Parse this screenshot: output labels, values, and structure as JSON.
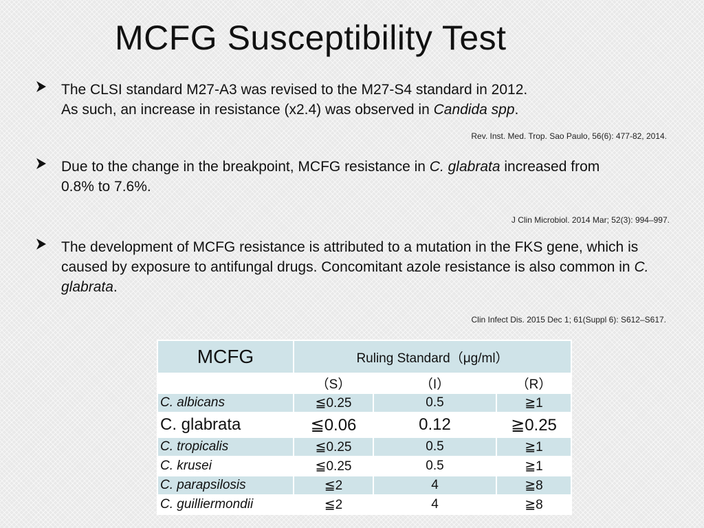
{
  "slide": {
    "title": "MCFG Susceptibility Test"
  },
  "bullets": [
    {
      "line1": "The CLSI standard M27-A3 was revised to the M27-S4 standard in 2012.",
      "line2_pre": "As such, an increase in resistance (x2.4) was observed in ",
      "line2_italic": "Candida spp",
      "line2_post": ".",
      "reference": "Rev. Inst. Med. Trop. Sao Paulo, 56(6): 477-82, 2014."
    },
    {
      "text_pre": "Due to the change in the breakpoint, MCFG resistance in ",
      "text_italic": "C. glabrata",
      "text_post": " increased from 0.8% to 7.6%.",
      "reference": "J Clin Microbiol. 2014 Mar; 52(3): 994–997."
    },
    {
      "text_pre": "The development of MCFG resistance is attributed to a mutation in the FKS gene, which is caused by exposure to antifungal drugs. Concomitant azole resistance is also common in ",
      "text_italic": "C. glabrata",
      "text_post": ".",
      "reference": "Clin Infect Dis. 2015 Dec 1; 61(Suppl 6): S612–S617."
    }
  ],
  "table": {
    "drug_label": "MCFG",
    "header_label": "Ruling Standard",
    "header_unit": "（μg/ml）",
    "columns": [
      "（S）",
      "（I）",
      "（R）"
    ],
    "rows": [
      {
        "species": "C. albicans",
        "s": "≦0.25",
        "i": "0.5",
        "r": "≧1"
      },
      {
        "species": "C. glabrata",
        "s": "≦0.06",
        "i": "0.12",
        "r": "≧0.25"
      },
      {
        "species": "C. tropicalis",
        "s": "≦0.25",
        "i": "0.5",
        "r": "≧1"
      },
      {
        "species": "C. krusei",
        "s": "≦0.25",
        "i": "0.5",
        "r": "≧1"
      },
      {
        "species": "C. parapsilosis",
        "s": "≦2",
        "i": "4",
        "r": "≧8"
      },
      {
        "species": "C. guilliermondii",
        "s": "≦2",
        "i": "4",
        "r": "≧8"
      }
    ]
  },
  "colors": {
    "background": "#e9e9e9",
    "table_shade": "#cfe3e8",
    "text": "#111111"
  },
  "icons": {
    "bullet": "arrow-bullet-icon"
  }
}
